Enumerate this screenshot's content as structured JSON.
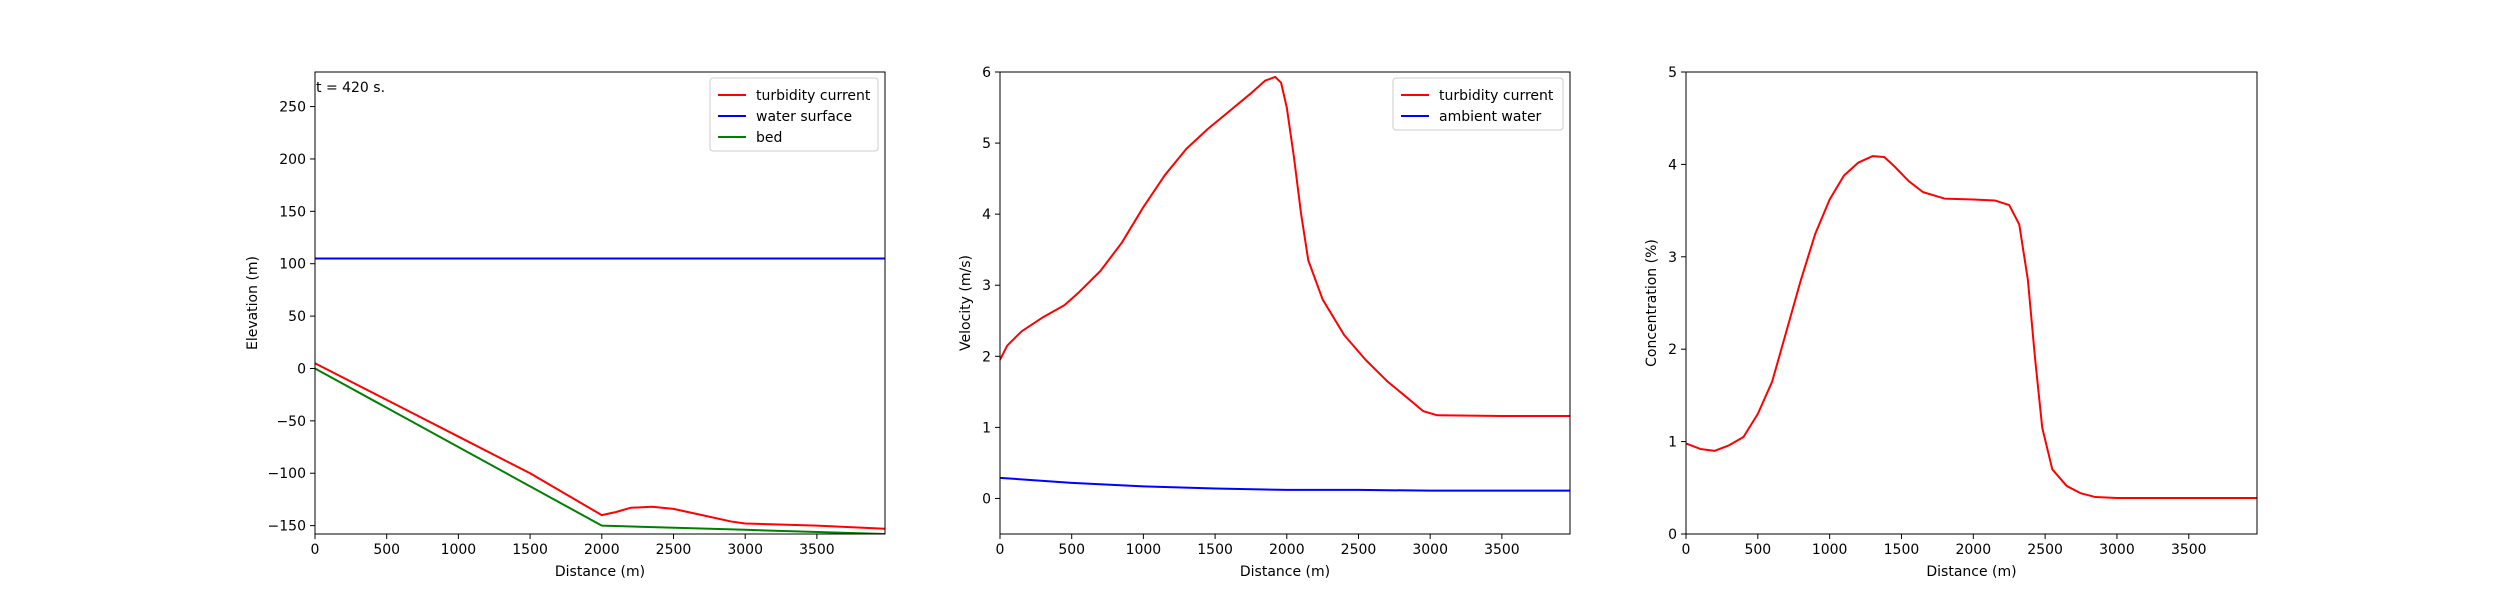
{
  "chart_data": [
    {
      "type": "line",
      "annotation": "t = 420 s.",
      "xlabel": "Distance (m)",
      "ylabel": "Elevation (m)",
      "xlim": [
        0,
        3975
      ],
      "ylim": [
        -158,
        283
      ],
      "xticks": [
        0,
        500,
        1000,
        1500,
        2000,
        2500,
        3000,
        3500
      ],
      "yticks": [
        -150,
        -100,
        -50,
        0,
        50,
        100,
        150,
        200,
        250
      ],
      "ytick_labels": [
        "−150",
        "−100",
        "−50",
        "0",
        "50",
        "100",
        "150",
        "200",
        "250"
      ],
      "legend": "top-right",
      "series": [
        {
          "name": "turbidity current",
          "color": "#ff0000",
          "points": [
            [
              0,
              5
            ],
            [
              500,
              -30
            ],
            [
              1000,
              -65
            ],
            [
              1500,
              -100
            ],
            [
              2000,
              -140
            ],
            [
              2100,
              -137
            ],
            [
              2200,
              -133
            ],
            [
              2350,
              -132
            ],
            [
              2500,
              -134
            ],
            [
              2700,
              -140
            ],
            [
              2900,
              -146
            ],
            [
              3000,
              -148
            ],
            [
              3500,
              -150
            ],
            [
              3975,
              -153
            ]
          ]
        },
        {
          "name": "water surface",
          "color": "#0000ff",
          "points": [
            [
              0,
              105
            ],
            [
              3975,
              105
            ]
          ]
        },
        {
          "name": "bed",
          "color": "#008000",
          "points": [
            [
              0,
              0
            ],
            [
              2000,
              -150
            ],
            [
              3000,
              -154
            ],
            [
              3975,
              -158
            ]
          ]
        }
      ]
    },
    {
      "type": "line",
      "xlabel": "Distance (m)",
      "ylabel": "Velocity (m/s)",
      "xlim": [
        0,
        3975
      ],
      "ylim": [
        -0.5,
        6
      ],
      "xticks": [
        0,
        500,
        1000,
        1500,
        2000,
        2500,
        3000,
        3500
      ],
      "yticks": [
        0,
        1,
        2,
        3,
        4,
        5,
        6
      ],
      "ytick_labels": [
        "0",
        "1",
        "2",
        "3",
        "4",
        "5",
        "6"
      ],
      "legend": "top-right",
      "series": [
        {
          "name": "turbidity current",
          "color": "#ff0000",
          "points": [
            [
              0,
              1.95
            ],
            [
              50,
              2.15
            ],
            [
              150,
              2.35
            ],
            [
              300,
              2.55
            ],
            [
              450,
              2.72
            ],
            [
              550,
              2.9
            ],
            [
              700,
              3.2
            ],
            [
              850,
              3.6
            ],
            [
              1000,
              4.1
            ],
            [
              1150,
              4.55
            ],
            [
              1300,
              4.92
            ],
            [
              1450,
              5.2
            ],
            [
              1600,
              5.45
            ],
            [
              1750,
              5.7
            ],
            [
              1850,
              5.88
            ],
            [
              1920,
              5.93
            ],
            [
              1960,
              5.85
            ],
            [
              2000,
              5.5
            ],
            [
              2050,
              4.8
            ],
            [
              2100,
              4.0
            ],
            [
              2150,
              3.35
            ],
            [
              2250,
              2.8
            ],
            [
              2400,
              2.3
            ],
            [
              2550,
              1.95
            ],
            [
              2700,
              1.65
            ],
            [
              2850,
              1.4
            ],
            [
              2950,
              1.23
            ],
            [
              3050,
              1.17
            ],
            [
              3500,
              1.16
            ],
            [
              3975,
              1.16
            ]
          ]
        },
        {
          "name": "ambient water",
          "color": "#0000ff",
          "points": [
            [
              0,
              0.29
            ],
            [
              500,
              0.22
            ],
            [
              1000,
              0.17
            ],
            [
              1500,
              0.14
            ],
            [
              2000,
              0.12
            ],
            [
              2500,
              0.12
            ],
            [
              3000,
              0.11
            ],
            [
              3500,
              0.11
            ],
            [
              3975,
              0.11
            ]
          ]
        }
      ]
    },
    {
      "type": "line",
      "xlabel": "Distance (m)",
      "ylabel": "Concentration (%)",
      "xlim": [
        0,
        3975
      ],
      "ylim": [
        0,
        5
      ],
      "xticks": [
        0,
        500,
        1000,
        1500,
        2000,
        2500,
        3000,
        3500
      ],
      "yticks": [
        0,
        1,
        2,
        3,
        4,
        5
      ],
      "ytick_labels": [
        "0",
        "1",
        "2",
        "3",
        "4",
        "5"
      ],
      "legend": "none",
      "series": [
        {
          "name": "",
          "color": "#ff0000",
          "points": [
            [
              0,
              0.98
            ],
            [
              100,
              0.92
            ],
            [
              200,
              0.9
            ],
            [
              300,
              0.96
            ],
            [
              400,
              1.05
            ],
            [
              500,
              1.3
            ],
            [
              600,
              1.65
            ],
            [
              700,
              2.2
            ],
            [
              800,
              2.75
            ],
            [
              900,
              3.25
            ],
            [
              1000,
              3.62
            ],
            [
              1100,
              3.88
            ],
            [
              1200,
              4.02
            ],
            [
              1300,
              4.09
            ],
            [
              1380,
              4.08
            ],
            [
              1450,
              3.98
            ],
            [
              1550,
              3.82
            ],
            [
              1650,
              3.7
            ],
            [
              1800,
              3.63
            ],
            [
              2000,
              3.62
            ],
            [
              2150,
              3.61
            ],
            [
              2250,
              3.56
            ],
            [
              2320,
              3.35
            ],
            [
              2380,
              2.75
            ],
            [
              2430,
              1.9
            ],
            [
              2480,
              1.15
            ],
            [
              2550,
              0.7
            ],
            [
              2650,
              0.52
            ],
            [
              2750,
              0.44
            ],
            [
              2850,
              0.4
            ],
            [
              3000,
              0.39
            ],
            [
              3975,
              0.39
            ]
          ]
        }
      ]
    }
  ]
}
